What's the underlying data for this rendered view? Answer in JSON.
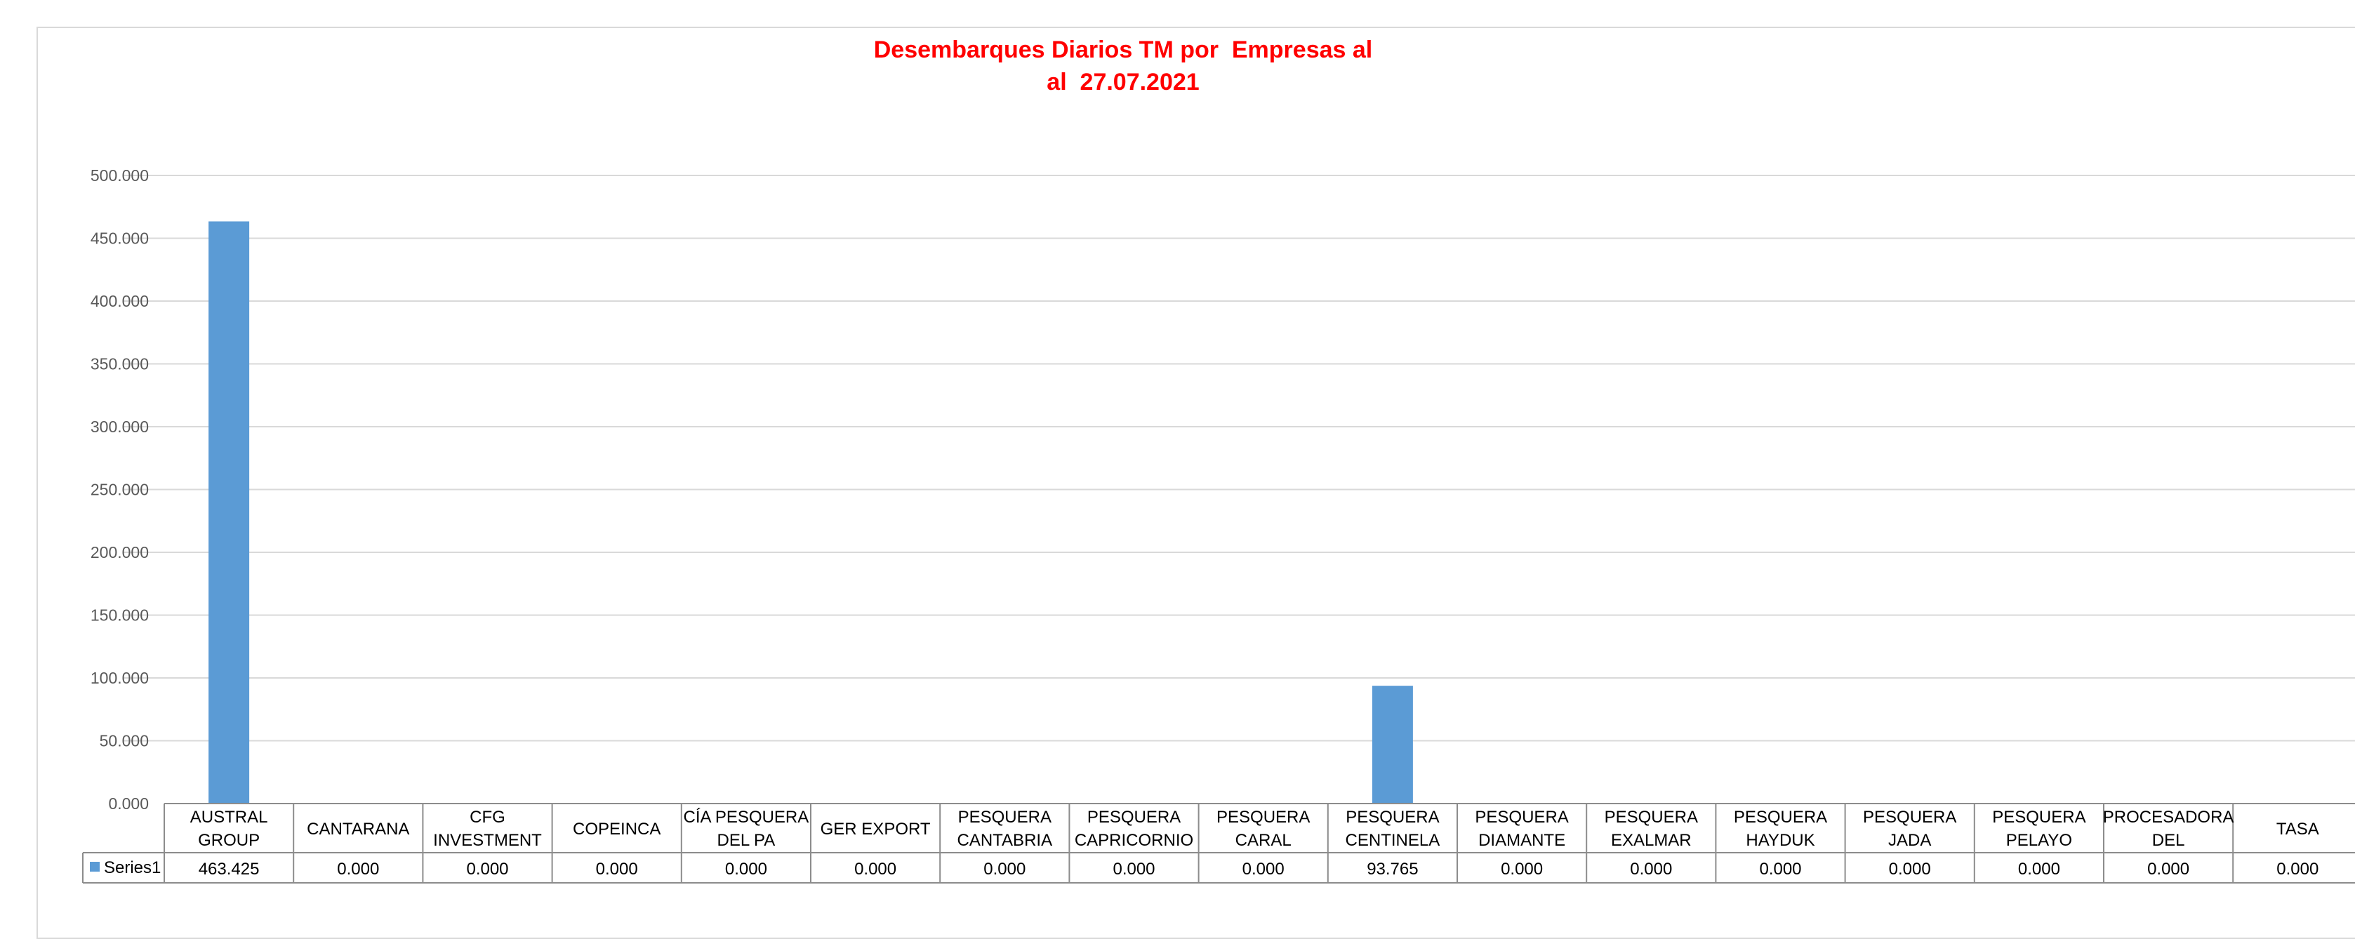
{
  "chart_data": {
    "type": "bar",
    "title": [
      "Desembarques Diarios TM por  Empresas al",
      "al  27.07.2021"
    ],
    "xlabel": "",
    "ylabel": "",
    "ylim": [
      0,
      500
    ],
    "yticks": [
      "0.000",
      "50.000",
      "100.000",
      "150.000",
      "200.000",
      "250.000",
      "300.000",
      "350.000",
      "400.000",
      "450.000",
      "500.000"
    ],
    "grid": true,
    "legend_placement": "data-table",
    "bar_color": "#5b9bd5",
    "categories": [
      [
        "AUSTRAL",
        "GROUP"
      ],
      [
        "CANTARANA"
      ],
      [
        "CFG",
        "INVESTMENT"
      ],
      [
        "COPEINCA"
      ],
      [
        "CÍA PESQUERA",
        "DEL PA"
      ],
      [
        "GER EXPORT"
      ],
      [
        "PESQUERA",
        "CANTABRIA"
      ],
      [
        "PESQUERA",
        "CAPRICORNIO"
      ],
      [
        "PESQUERA",
        "CARAL"
      ],
      [
        "PESQUERA",
        "CENTINELA"
      ],
      [
        "PESQUERA",
        "DIAMANTE"
      ],
      [
        "PESQUERA",
        "EXALMAR"
      ],
      [
        "PESQUERA",
        "HAYDUK"
      ],
      [
        "PESQUERA",
        "JADA"
      ],
      [
        "PESQUERA",
        "PELAYO"
      ],
      [
        "PROCESADORA",
        "DEL"
      ],
      [
        "TASA"
      ]
    ],
    "series": [
      {
        "name": "Series1",
        "values": [
          463.425,
          0,
          0,
          0,
          0,
          0,
          0,
          0,
          0,
          93.765,
          0,
          0,
          0,
          0,
          0,
          0,
          0
        ],
        "labels": [
          "463.425",
          "0.000",
          "0.000",
          "0.000",
          "0.000",
          "0.000",
          "0.000",
          "0.000",
          "0.000",
          "93.765",
          "0.000",
          "0.000",
          "0.000",
          "0.000",
          "0.000",
          "0.000",
          "0.000"
        ]
      }
    ]
  }
}
